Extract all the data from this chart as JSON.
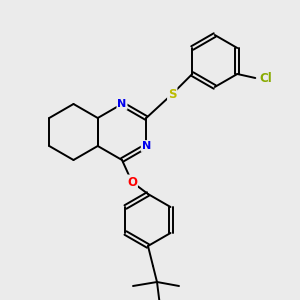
{
  "background_color": "#ebebeb",
  "bond_color": "#000000",
  "atom_colors": {
    "N": "#0000ee",
    "O": "#ff0000",
    "S": "#bbbb00",
    "Cl": "#88aa00",
    "C": "#000000"
  },
  "figsize": [
    3.0,
    3.0
  ],
  "dpi": 100
}
